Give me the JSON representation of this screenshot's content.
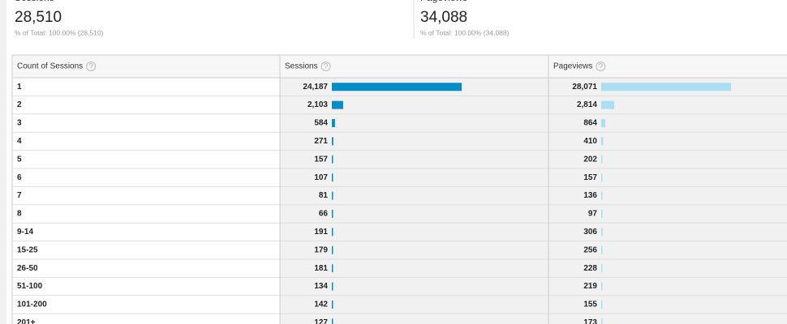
{
  "summary": [
    {
      "label": "Sessions",
      "value": {
        "value": 28510,
        "label": "28,510"
      },
      "note": "% of Total: 100.00% (28,510)"
    },
    {
      "label": "Pageviews",
      "value": {
        "value": 34088,
        "label": "34,088"
      },
      "note": "% of Total: 100.00% (34,088)"
    }
  ],
  "table": {
    "headers": [
      "Count of Sessions",
      "Sessions",
      "Pageviews"
    ],
    "rows": [
      [
        "1",
        {
          "value": 24187,
          "label": "24,187"
        },
        {
          "value": 28071,
          "label": "28,071"
        }
      ],
      [
        "2",
        {
          "value": 2103,
          "label": "2,103"
        },
        {
          "value": 2814,
          "label": "2,814"
        }
      ],
      [
        "3",
        584,
        864
      ],
      [
        "4",
        271,
        410
      ],
      [
        "5",
        157,
        202
      ],
      [
        "6",
        107,
        157
      ],
      [
        "7",
        81,
        136
      ],
      [
        "8",
        66,
        97
      ],
      [
        "9-14",
        191,
        306
      ],
      [
        "15-25",
        179,
        256
      ],
      [
        "26-50",
        181,
        228
      ],
      [
        "51-100",
        134,
        219
      ],
      [
        "101-200",
        142,
        155
      ],
      [
        "201+",
        127,
        173
      ]
    ],
    "bar_colors": [
      "#058dc7",
      "#aadff3"
    ]
  }
}
